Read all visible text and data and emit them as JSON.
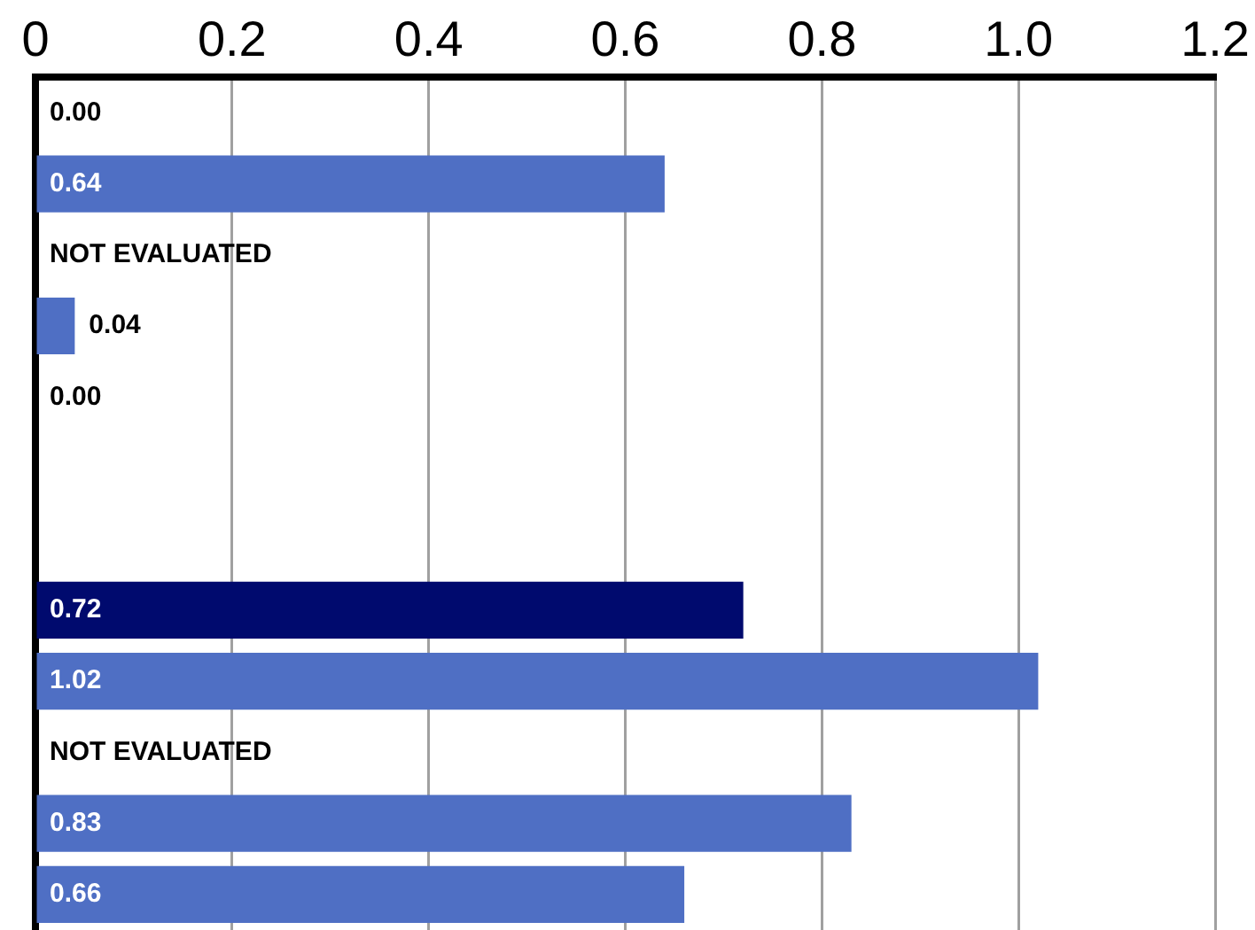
{
  "chart_data": {
    "type": "bar",
    "orientation": "horizontal",
    "categories": [
      null,
      null,
      null,
      null,
      null,
      null,
      null,
      null,
      null,
      null,
      null,
      null
    ],
    "values": [
      0,
      0.64,
      null,
      0.04,
      0,
      null,
      null,
      0.72,
      1.02,
      null,
      0.83,
      0.66
    ],
    "colors": [
      "#4f6fc4",
      "#4f6fc4",
      "#4f6fc4",
      "#4f6fc4",
      "#4f6fc4",
      "#4f6fc4",
      "#4f6fc4",
      "#000a6e",
      "#4f6fc4",
      "#4f6fc4",
      "#4f6fc4",
      "#4f6fc4"
    ],
    "value_labels": [
      "0.00",
      "0.64",
      "NOT EVALUATED",
      "0.04",
      "0.00",
      null,
      null,
      "0.72",
      "1.02",
      "NOT EVALUATED",
      "0.83",
      "0.66"
    ],
    "xlim": [
      0,
      1.2
    ],
    "xticks": [
      0,
      0.2,
      0.4,
      0.6,
      0.8,
      {
        "value": 1,
        "label": "1.0"
      },
      1.2
    ],
    "grid": "x",
    "legend": false
  }
}
